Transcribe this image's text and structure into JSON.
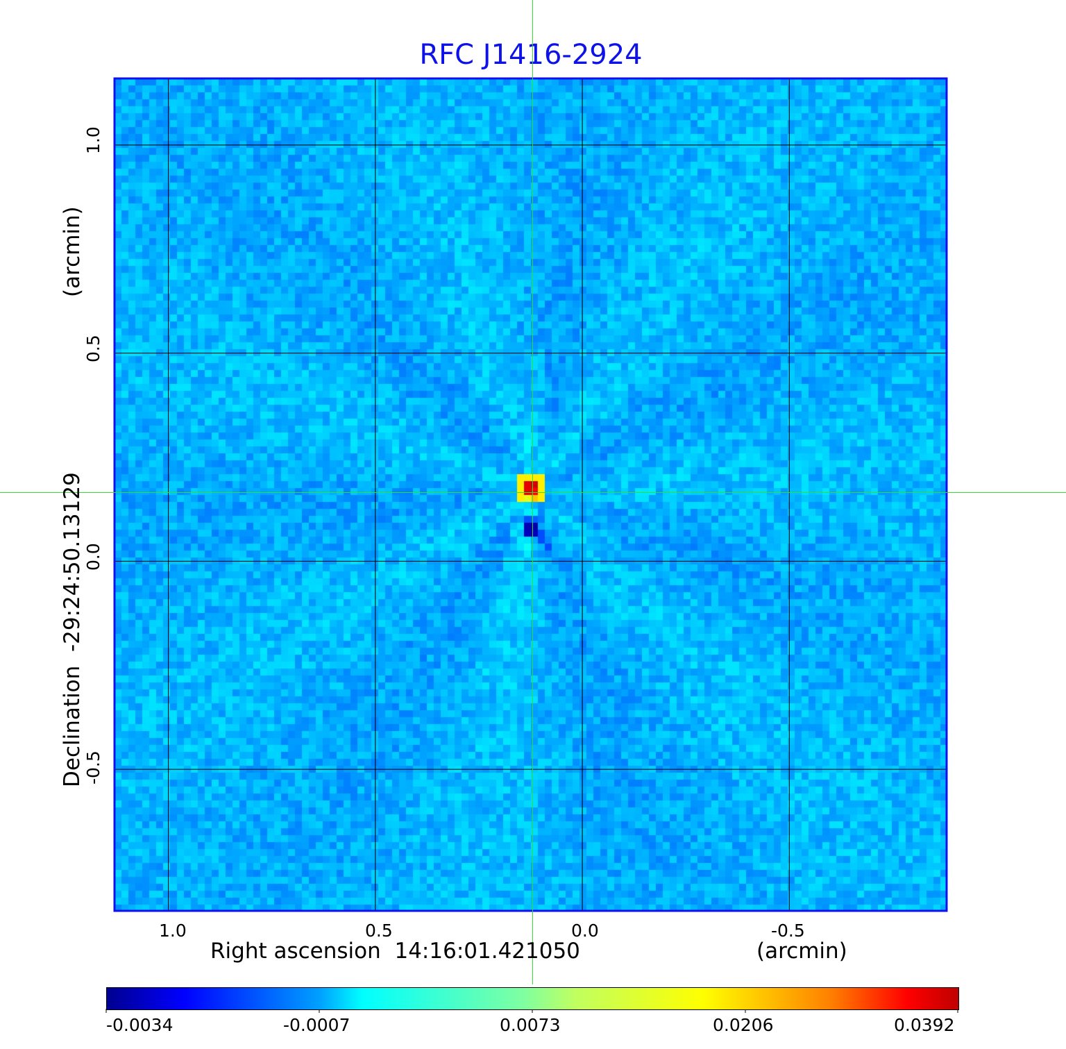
{
  "chart_data": {
    "type": "heatmap",
    "title": "RFC J1416-2924",
    "xlabel": "Right ascension  14:16:01.421050",
    "xunit": "(arcmin)",
    "ylabel": "Declination  -29:24:50.13129",
    "yunit": "(arcmin)",
    "xticks": [
      "1.0",
      "0.5",
      "0.0",
      "-0.5"
    ],
    "xtick_values": [
      1.0,
      0.5,
      0.0,
      -0.5
    ],
    "yticks": [
      "1.0",
      "0.5",
      "0.0",
      "-0.5"
    ],
    "ytick_values": [
      1.0,
      0.5,
      0.0,
      -0.5
    ],
    "xlim": [
      1.13,
      -0.88
    ],
    "ylim": [
      -0.84,
      1.16
    ],
    "grid": true,
    "crosshair": {
      "x": 0.12,
      "y": 0.165
    },
    "colormap": "jet",
    "colorbar": {
      "ticks": [
        "-0.0034",
        "-0.0007",
        "0.0073",
        "0.0206",
        "0.0392"
      ],
      "range": [
        -0.0034,
        0.0392
      ],
      "placement": "bottom"
    },
    "features": [
      {
        "name": "peak",
        "x": 0.12,
        "y": 0.17,
        "value": 0.0392
      },
      {
        "name": "negative-sidelobe",
        "x": 0.12,
        "y": 0.075,
        "value": -0.0034
      }
    ],
    "background_level": 0.0
  },
  "colors": {
    "title": "#0d12e8",
    "frame": "#1010ee",
    "crosshair": "#33dd33",
    "grid": "#000000"
  }
}
